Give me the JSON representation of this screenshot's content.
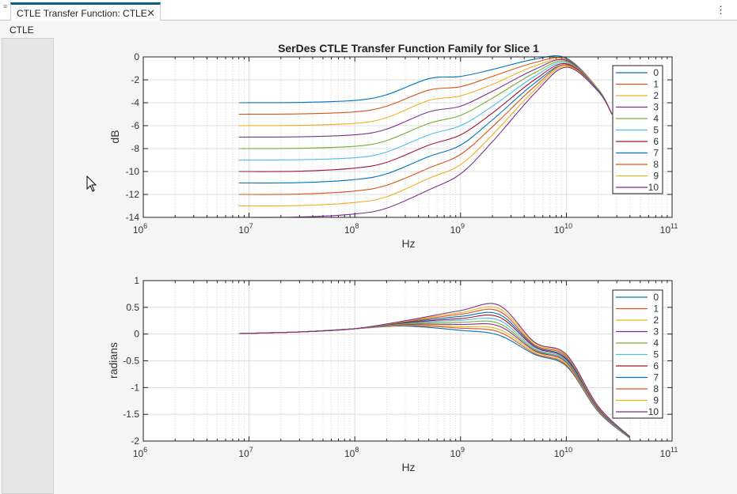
{
  "window": {
    "tab_title": "CTLE Transfer Function: CTLE",
    "panel_title": "CTLE",
    "icons": {
      "grip": "grip-icon",
      "close": "close-icon",
      "more": "more-vertical-icon",
      "cursor": "cursor-icon"
    }
  },
  "chart_data": [
    {
      "type": "line",
      "title": "SerDes CTLE Transfer Function Family for Slice 1",
      "xlabel": "Hz",
      "ylabel": "dB",
      "xscale": "log",
      "xlim": [
        1000000.0,
        100000000000.0
      ],
      "ylim": [
        -14,
        0
      ],
      "xticks": [
        1000000.0,
        10000000.0,
        100000000.0,
        1000000000.0,
        10000000000.0,
        100000000000.0
      ],
      "xtick_labels": [
        {
          "base": "10",
          "exp": "6"
        },
        {
          "base": "10",
          "exp": "7"
        },
        {
          "base": "10",
          "exp": "8"
        },
        {
          "base": "10",
          "exp": "9"
        },
        {
          "base": "10",
          "exp": "10"
        },
        {
          "base": "10",
          "exp": "11"
        }
      ],
      "yticks": [
        0,
        -2,
        -4,
        -6,
        -8,
        -10,
        -12,
        -14
      ],
      "ytick_labels": [
        "0",
        "-2",
        "-4",
        "-6",
        "-8",
        "-10",
        "-12",
        "-14"
      ],
      "grid": true,
      "legend_placement": "top-right",
      "x": [
        8000000.0,
        30000000.0,
        100000000.0,
        200000000.0,
        500000000.0,
        1000000000.0,
        2000000000.0,
        5000000000.0,
        10000000000.0,
        20000000000.0,
        27000000000.0
      ],
      "series": [
        {
          "name": "0",
          "color": "#0072BD",
          "values": [
            -4,
            -3.97,
            -3.8,
            -3.3,
            -1.9,
            -1.7,
            -1.1,
            -0.2,
            -0.1,
            -2.8,
            -5
          ]
        },
        {
          "name": "1",
          "color": "#D95319",
          "values": [
            -5,
            -4.97,
            -4.8,
            -4.3,
            -2.9,
            -2.6,
            -1.7,
            -0.5,
            -0.2,
            -2.8,
            -5
          ]
        },
        {
          "name": "2",
          "color": "#EDB120",
          "values": [
            -6,
            -5.97,
            -5.8,
            -5.3,
            -3.8,
            -3.4,
            -2.4,
            -0.8,
            -0.3,
            -2.8,
            -5
          ]
        },
        {
          "name": "3",
          "color": "#7E2F8E",
          "values": [
            -7,
            -6.97,
            -6.8,
            -6.3,
            -4.8,
            -4.3,
            -3.0,
            -1.1,
            -0.3,
            -2.9,
            -5
          ]
        },
        {
          "name": "4",
          "color": "#77AC30",
          "values": [
            -8,
            -7.97,
            -7.8,
            -7.3,
            -5.8,
            -5.1,
            -3.6,
            -1.4,
            -0.4,
            -2.9,
            -5
          ]
        },
        {
          "name": "5",
          "color": "#4DBEEE",
          "values": [
            -9,
            -8.97,
            -8.8,
            -8.3,
            -6.8,
            -6.0,
            -4.3,
            -1.7,
            -0.5,
            -2.9,
            -5
          ]
        },
        {
          "name": "6",
          "color": "#A2142F",
          "values": [
            -10,
            -9.97,
            -9.7,
            -9.2,
            -7.7,
            -6.8,
            -4.9,
            -2.0,
            -0.6,
            -2.9,
            -5
          ]
        },
        {
          "name": "7",
          "color": "#0072BD",
          "values": [
            -11,
            -10.97,
            -10.7,
            -10.2,
            -8.7,
            -7.7,
            -5.5,
            -2.3,
            -0.7,
            -2.9,
            -5
          ]
        },
        {
          "name": "8",
          "color": "#D95319",
          "values": [
            -12,
            -11.97,
            -11.7,
            -11.2,
            -9.7,
            -8.5,
            -6.1,
            -2.6,
            -0.7,
            -3.0,
            -5
          ]
        },
        {
          "name": "9",
          "color": "#EDB120",
          "values": [
            -13,
            -12.97,
            -12.7,
            -12.2,
            -10.6,
            -9.4,
            -6.8,
            -2.9,
            -0.8,
            -3.0,
            -5
          ]
        },
        {
          "name": "10",
          "color": "#7E2F8E",
          "values": [
            -14,
            -13.97,
            -13.7,
            -13.2,
            -11.6,
            -10.2,
            -7.4,
            -3.2,
            -0.9,
            -3.0,
            -5
          ]
        }
      ]
    },
    {
      "type": "line",
      "title": "",
      "xlabel": "Hz",
      "ylabel": "radians",
      "xscale": "log",
      "xlim": [
        1000000.0,
        100000000000.0
      ],
      "ylim": [
        -2,
        1
      ],
      "xticks": [
        1000000.0,
        10000000.0,
        100000000.0,
        1000000000.0,
        10000000000.0,
        100000000000.0
      ],
      "xtick_labels": [
        {
          "base": "10",
          "exp": "6"
        },
        {
          "base": "10",
          "exp": "7"
        },
        {
          "base": "10",
          "exp": "8"
        },
        {
          "base": "10",
          "exp": "9"
        },
        {
          "base": "10",
          "exp": "10"
        },
        {
          "base": "10",
          "exp": "11"
        }
      ],
      "yticks": [
        1,
        0.5,
        0,
        -0.5,
        -1,
        -1.5,
        -2
      ],
      "ytick_labels": [
        "1",
        "0.5",
        "0",
        "-0.5",
        "-1",
        "-1.5",
        "-2"
      ],
      "grid": true,
      "legend_placement": "top-right",
      "x": [
        8000000.0,
        30000000.0,
        100000000.0,
        300000000.0,
        1000000000.0,
        2300000000.0,
        5000000000.0,
        10000000000.0,
        20000000000.0,
        40000000000.0
      ],
      "series": [
        {
          "name": "0",
          "color": "#0072BD",
          "values": [
            0.01,
            0.04,
            0.1,
            0.15,
            0.07,
            -0.02,
            -0.38,
            -0.6,
            -1.45,
            -1.95
          ]
        },
        {
          "name": "1",
          "color": "#D95319",
          "values": [
            0.01,
            0.04,
            0.1,
            0.16,
            0.11,
            0.04,
            -0.36,
            -0.58,
            -1.44,
            -1.95
          ]
        },
        {
          "name": "2",
          "color": "#EDB120",
          "values": [
            0.01,
            0.04,
            0.1,
            0.17,
            0.14,
            0.09,
            -0.33,
            -0.56,
            -1.43,
            -1.94
          ]
        },
        {
          "name": "3",
          "color": "#7E2F8E",
          "values": [
            0.01,
            0.04,
            0.1,
            0.18,
            0.18,
            0.15,
            -0.31,
            -0.53,
            -1.42,
            -1.94
          ]
        },
        {
          "name": "4",
          "color": "#77AC30",
          "values": [
            0.01,
            0.04,
            0.1,
            0.19,
            0.22,
            0.2,
            -0.29,
            -0.51,
            -1.41,
            -1.94
          ]
        },
        {
          "name": "5",
          "color": "#4DBEEE",
          "values": [
            0.01,
            0.04,
            0.1,
            0.2,
            0.26,
            0.26,
            -0.27,
            -0.49,
            -1.4,
            -1.93
          ]
        },
        {
          "name": "6",
          "color": "#A2142F",
          "values": [
            0.01,
            0.04,
            0.1,
            0.21,
            0.29,
            0.32,
            -0.24,
            -0.47,
            -1.39,
            -1.93
          ]
        },
        {
          "name": "7",
          "color": "#0072BD",
          "values": [
            0.01,
            0.04,
            0.1,
            0.22,
            0.33,
            0.37,
            -0.22,
            -0.45,
            -1.38,
            -1.93
          ]
        },
        {
          "name": "8",
          "color": "#D95319",
          "values": [
            0.01,
            0.04,
            0.1,
            0.23,
            0.37,
            0.43,
            -0.2,
            -0.42,
            -1.37,
            -1.92
          ]
        },
        {
          "name": "9",
          "color": "#EDB120",
          "values": [
            0.01,
            0.04,
            0.1,
            0.24,
            0.4,
            0.48,
            -0.17,
            -0.4,
            -1.36,
            -1.92
          ]
        },
        {
          "name": "10",
          "color": "#7E2F8E",
          "values": [
            0.01,
            0.04,
            0.1,
            0.25,
            0.44,
            0.54,
            -0.15,
            -0.38,
            -1.35,
            -1.92
          ]
        }
      ]
    }
  ]
}
